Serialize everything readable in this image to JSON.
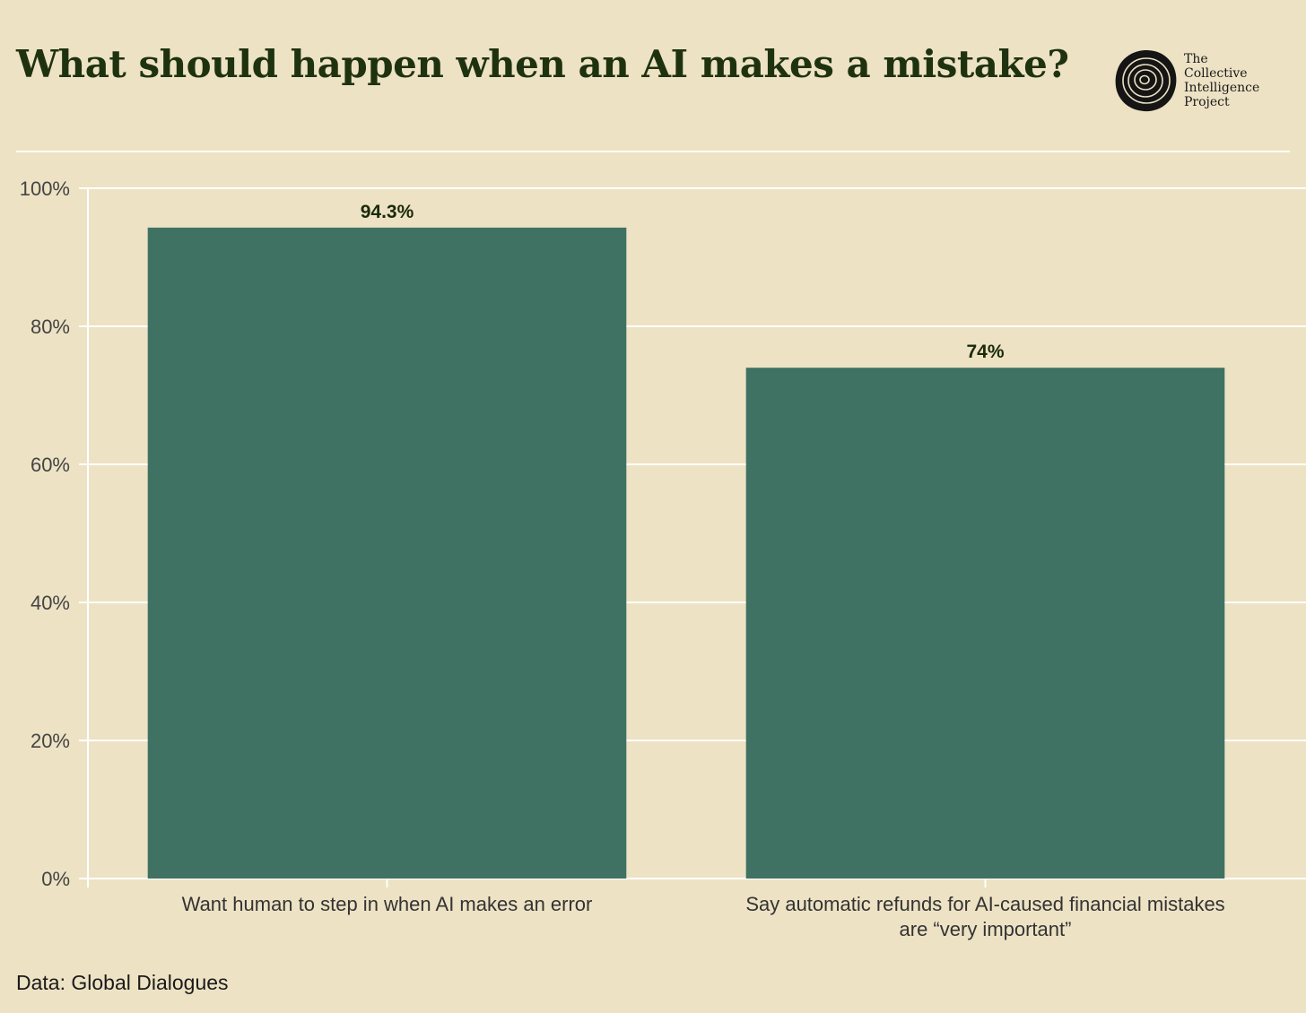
{
  "header": {
    "title": "What should happen when an AI makes a mistake?"
  },
  "logo": {
    "icon": "tree-rings-icon",
    "lines": [
      "The",
      "Collective",
      "Intelligence",
      "Project"
    ]
  },
  "footer": {
    "source": "Data: Global Dialogues"
  },
  "colors": {
    "background": "#ede2c4",
    "bar": "#3f7262",
    "title": "#1f3210",
    "grid": "#ffffff",
    "label": "#1a2a0a"
  },
  "chart_data": {
    "type": "bar",
    "title": "What should happen when an AI makes a mistake?",
    "categories": [
      [
        "Want human to step in when AI makes an error"
      ],
      [
        "Say automatic refunds for AI-caused financial mistakes",
        "are “very important”"
      ]
    ],
    "values": [
      94.3,
      74
    ],
    "value_labels": [
      "94.3%",
      "74%"
    ],
    "ylim": [
      0,
      100
    ],
    "yticks": [
      0,
      20,
      40,
      60,
      80,
      100
    ],
    "ytick_labels": [
      "0%",
      "20%",
      "40%",
      "60%",
      "80%",
      "100%"
    ],
    "xlabel": "",
    "ylabel": "",
    "grid": true,
    "legend": "none"
  }
}
